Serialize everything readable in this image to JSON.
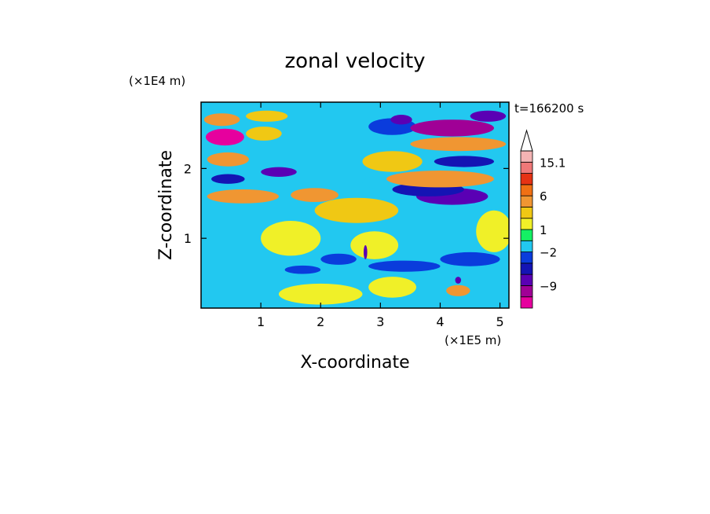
{
  "chart_data": {
    "type": "heatmap",
    "title": "zonal velocity",
    "xlabel": "X-coordinate",
    "ylabel": "Z-coordinate",
    "x_unit": "(×1E5 m)",
    "y_unit": "(×1E4 m)",
    "time_label": "t=166200 s",
    "x_range": [
      0,
      5.15
    ],
    "y_range": [
      0,
      2.95
    ],
    "x_ticks": [
      {
        "value": 1,
        "label": "1"
      },
      {
        "value": 2,
        "label": "2"
      },
      {
        "value": 3,
        "label": "3"
      },
      {
        "value": 4,
        "label": "4"
      },
      {
        "value": 5,
        "label": "5"
      }
    ],
    "y_ticks": [
      {
        "value": 1,
        "label": "1"
      },
      {
        "value": 2,
        "label": "2"
      }
    ],
    "colorbar": {
      "levels": [
        -15,
        -12,
        -9,
        -6,
        -3,
        -2,
        -1,
        1,
        2,
        3,
        6,
        9,
        12,
        15.1
      ],
      "colors": [
        "#e6009e",
        "#a00096",
        "#5a00b4",
        "#1414b4",
        "#0a3cdc",
        "#22c8f0",
        "#14f064",
        "#f0f028",
        "#f0c814",
        "#f09632",
        "#f07014",
        "#e63214",
        "#f07878",
        "#f4b4b4"
      ],
      "over_color": "#ffffff",
      "labels": [
        {
          "value": 15.1,
          "text": "15.1"
        },
        {
          "value": 6,
          "text": "6"
        },
        {
          "value": 1,
          "text": "1"
        },
        {
          "value": -2,
          "text": "−2"
        },
        {
          "value": -9,
          "text": "−9"
        }
      ]
    },
    "background_value": -1.5,
    "field": [
      {
        "x": 0.35,
        "z": 2.7,
        "rx": 0.3,
        "rz": 0.09,
        "v": 4.5
      },
      {
        "x": 1.1,
        "z": 2.75,
        "rx": 0.35,
        "rz": 0.08,
        "v": 2.5
      },
      {
        "x": 0.4,
        "z": 2.45,
        "rx": 0.32,
        "rz": 0.12,
        "v": -13
      },
      {
        "x": 1.05,
        "z": 2.5,
        "rx": 0.3,
        "rz": 0.1,
        "v": 2.5
      },
      {
        "x": 0.45,
        "z": 2.13,
        "rx": 0.35,
        "rz": 0.1,
        "v": 4.5
      },
      {
        "x": 0.45,
        "z": 1.85,
        "rx": 0.28,
        "rz": 0.07,
        "v": -5
      },
      {
        "x": 1.3,
        "z": 1.95,
        "rx": 0.3,
        "rz": 0.07,
        "v": -7
      },
      {
        "x": 0.7,
        "z": 1.6,
        "rx": 0.6,
        "rz": 0.1,
        "v": 4.5
      },
      {
        "x": 1.9,
        "z": 1.62,
        "rx": 0.4,
        "rz": 0.1,
        "v": 4.5
      },
      {
        "x": 3.2,
        "z": 2.6,
        "rx": 0.4,
        "rz": 0.12,
        "v": -2.5
      },
      {
        "x": 3.2,
        "z": 2.1,
        "rx": 0.5,
        "rz": 0.15,
        "v": 2.5
      },
      {
        "x": 3.3,
        "z": 1.8,
        "rx": 0.6,
        "rz": 0.12,
        "v": -1.5
      },
      {
        "x": 3.35,
        "z": 2.7,
        "rx": 0.18,
        "rz": 0.07,
        "v": -8
      },
      {
        "x": 4.2,
        "z": 2.58,
        "rx": 0.7,
        "rz": 0.12,
        "v": -11
      },
      {
        "x": 4.8,
        "z": 2.75,
        "rx": 0.3,
        "rz": 0.08,
        "v": -8
      },
      {
        "x": 4.3,
        "z": 2.35,
        "rx": 0.8,
        "rz": 0.1,
        "v": 4.5
      },
      {
        "x": 4.4,
        "z": 2.1,
        "rx": 0.5,
        "rz": 0.08,
        "v": -5
      },
      {
        "x": 4.2,
        "z": 1.6,
        "rx": 0.6,
        "rz": 0.12,
        "v": -8
      },
      {
        "x": 3.8,
        "z": 1.7,
        "rx": 0.6,
        "rz": 0.1,
        "v": -4
      },
      {
        "x": 4.0,
        "z": 1.85,
        "rx": 0.9,
        "rz": 0.12,
        "v": 4.5
      },
      {
        "x": 2.6,
        "z": 1.4,
        "rx": 0.7,
        "rz": 0.18,
        "v": 2.5
      },
      {
        "x": 1.5,
        "z": 1.0,
        "rx": 0.5,
        "rz": 0.25,
        "v": 1.5
      },
      {
        "x": 2.9,
        "z": 0.9,
        "rx": 0.4,
        "rz": 0.2,
        "v": 1.5
      },
      {
        "x": 1.7,
        "z": 0.55,
        "rx": 0.3,
        "rz": 0.06,
        "v": -2.5
      },
      {
        "x": 2.3,
        "z": 0.7,
        "rx": 0.3,
        "rz": 0.08,
        "v": -2.5
      },
      {
        "x": 3.4,
        "z": 0.6,
        "rx": 0.6,
        "rz": 0.08,
        "v": -2.5
      },
      {
        "x": 4.5,
        "z": 0.7,
        "rx": 0.5,
        "rz": 0.1,
        "v": -2.5
      },
      {
        "x": 2.0,
        "z": 0.2,
        "rx": 0.7,
        "rz": 0.15,
        "v": 1.5
      },
      {
        "x": 3.2,
        "z": 0.3,
        "rx": 0.4,
        "rz": 0.15,
        "v": 1.5
      },
      {
        "x": 4.3,
        "z": 0.25,
        "rx": 0.2,
        "rz": 0.08,
        "v": 4.5
      },
      {
        "x": 2.75,
        "z": 0.8,
        "rx": 0.03,
        "rz": 0.1,
        "v": -8
      },
      {
        "x": 4.3,
        "z": 0.4,
        "rx": 0.05,
        "rz": 0.05,
        "v": -8
      },
      {
        "x": 4.9,
        "z": 1.1,
        "rx": 0.3,
        "rz": 0.3,
        "v": 1.5
      }
    ]
  }
}
